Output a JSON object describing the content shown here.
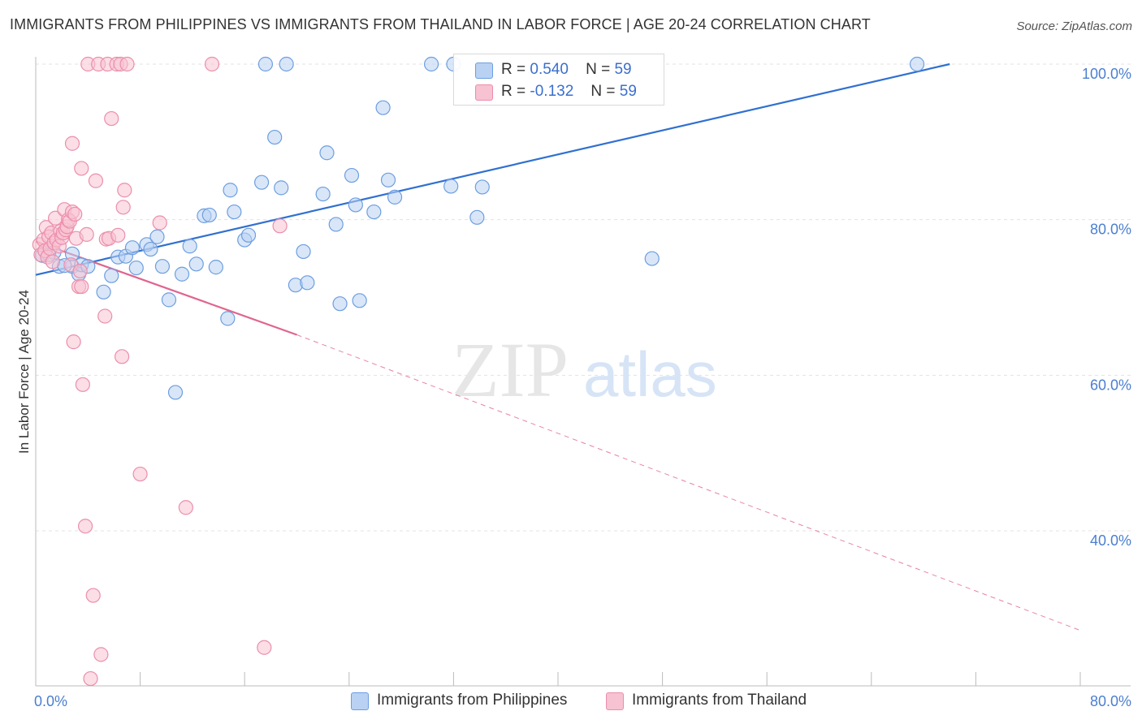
{
  "title": "IMMIGRANTS FROM PHILIPPINES VS IMMIGRANTS FROM THAILAND IN LABOR FORCE | AGE 20-24 CORRELATION CHART",
  "source": "Source: ZipAtlas.com",
  "watermark": {
    "zip": "ZIP",
    "atlas": "atlas"
  },
  "colors": {
    "blue_fill": "#b9d1f3",
    "blue_stroke": "#6c9ee0",
    "blue_line": "#3070d0",
    "pink_fill": "#f7c2d2",
    "pink_stroke": "#ec8eab",
    "pink_line": "#e0658e",
    "tick_label": "#4a7fd0",
    "grid": "#e3e3e3"
  },
  "legend": {
    "rows": [
      {
        "r_label": "R =",
        "r_value": "0.540",
        "n_label": "N =",
        "n_value": "59"
      },
      {
        "r_label": "R =",
        "r_value": "-0.132",
        "n_label": "N =",
        "n_value": "59"
      }
    ]
  },
  "chart_data": {
    "type": "scatter",
    "title": "IMMIGRANTS FROM PHILIPPINES VS IMMIGRANTS FROM THAILAND IN LABOR FORCE | AGE 20-24 CORRELATION CHART",
    "xlabel": "",
    "ylabel": "In Labor Force | Age 20-24",
    "xlim": [
      0,
      80
    ],
    "ylim": [
      20,
      102
    ],
    "x_tick_labels": [
      {
        "value": 0,
        "label": "0.0%"
      },
      {
        "value": 80,
        "label": "80.0%"
      }
    ],
    "y_tick_labels": [
      {
        "value": 100,
        "label": "100.0%"
      },
      {
        "value": 80,
        "label": "80.0%"
      },
      {
        "value": 60,
        "label": "60.0%"
      },
      {
        "value": 40,
        "label": "40.0%"
      }
    ],
    "grid": true,
    "legend_position": "top-center",
    "series": [
      {
        "name": "Immigrants from Philippines",
        "color": "blue",
        "points": [
          [
            0.5,
            75.4
          ],
          [
            1.0,
            75.5
          ],
          [
            1.4,
            75.8
          ],
          [
            1.8,
            74.0
          ],
          [
            2.8,
            74.0
          ],
          [
            2.8,
            75.6
          ],
          [
            3.3,
            73.0
          ],
          [
            3.5,
            74.2
          ],
          [
            4.0,
            74.0
          ],
          [
            5.2,
            70.7
          ],
          [
            5.8,
            72.8
          ],
          [
            6.3,
            75.2
          ],
          [
            6.9,
            75.3
          ],
          [
            7.7,
            73.8
          ],
          [
            7.4,
            76.4
          ],
          [
            8.5,
            76.8
          ],
          [
            8.8,
            76.2
          ],
          [
            9.3,
            77.8
          ],
          [
            9.7,
            74.0
          ],
          [
            10.2,
            69.7
          ],
          [
            10.7,
            57.8
          ],
          [
            11.2,
            73.0
          ],
          [
            11.8,
            76.6
          ],
          [
            12.3,
            74.3
          ],
          [
            12.9,
            80.5
          ],
          [
            13.3,
            80.6
          ],
          [
            13.8,
            73.9
          ],
          [
            14.7,
            67.3
          ],
          [
            14.9,
            83.8
          ],
          [
            15.2,
            81.0
          ],
          [
            16.0,
            77.4
          ],
          [
            16.3,
            78.0
          ],
          [
            17.3,
            84.8
          ],
          [
            17.6,
            100.0
          ],
          [
            18.3,
            90.6
          ],
          [
            18.8,
            84.1
          ],
          [
            19.2,
            100.0
          ],
          [
            19.9,
            71.6
          ],
          [
            20.5,
            75.9
          ],
          [
            20.8,
            71.9
          ],
          [
            22.0,
            83.3
          ],
          [
            22.3,
            88.6
          ],
          [
            23.0,
            79.4
          ],
          [
            23.3,
            69.2
          ],
          [
            24.2,
            85.7
          ],
          [
            24.5,
            81.9
          ],
          [
            24.8,
            69.6
          ],
          [
            25.9,
            81.0
          ],
          [
            26.6,
            94.4
          ],
          [
            27.0,
            85.1
          ],
          [
            27.5,
            82.9
          ],
          [
            30.3,
            100.0
          ],
          [
            31.8,
            84.3
          ],
          [
            32.0,
            100.0
          ],
          [
            33.8,
            80.3
          ],
          [
            34.2,
            84.2
          ],
          [
            47.2,
            75.0
          ],
          [
            67.5,
            100.0
          ],
          [
            2.2,
            74.1
          ]
        ],
        "trend": {
          "x0": 0,
          "y0": 72.9,
          "x1": 70.0,
          "y1": 100.0
        }
      },
      {
        "name": "Immigrants from Thailand",
        "color": "pink",
        "points": [
          [
            0.3,
            76.8
          ],
          [
            0.4,
            75.5
          ],
          [
            0.6,
            77.4
          ],
          [
            0.7,
            76.0
          ],
          [
            0.8,
            79.0
          ],
          [
            0.9,
            75.2
          ],
          [
            1.0,
            77.8
          ],
          [
            1.1,
            76.3
          ],
          [
            1.2,
            78.3
          ],
          [
            1.3,
            74.6
          ],
          [
            1.4,
            77.0
          ],
          [
            1.5,
            80.2
          ],
          [
            1.6,
            77.4
          ],
          [
            1.8,
            76.6
          ],
          [
            1.9,
            78.5
          ],
          [
            2.0,
            77.7
          ],
          [
            2.1,
            78.3
          ],
          [
            2.2,
            81.3
          ],
          [
            2.3,
            78.7
          ],
          [
            2.4,
            79.1
          ],
          [
            2.5,
            80.0
          ],
          [
            2.6,
            79.8
          ],
          [
            2.7,
            74.2
          ],
          [
            2.8,
            81.0
          ],
          [
            2.8,
            89.8
          ],
          [
            2.9,
            64.3
          ],
          [
            3.0,
            80.7
          ],
          [
            3.1,
            77.6
          ],
          [
            3.3,
            71.4
          ],
          [
            3.4,
            73.4
          ],
          [
            3.5,
            71.4
          ],
          [
            3.5,
            86.6
          ],
          [
            3.6,
            58.8
          ],
          [
            3.8,
            40.6
          ],
          [
            3.9,
            78.1
          ],
          [
            4.0,
            100.0
          ],
          [
            4.2,
            21.0
          ],
          [
            4.4,
            31.7
          ],
          [
            4.6,
            85.0
          ],
          [
            4.8,
            100.0
          ],
          [
            5.0,
            24.1
          ],
          [
            5.3,
            67.6
          ],
          [
            5.4,
            77.5
          ],
          [
            5.5,
            100.0
          ],
          [
            5.6,
            77.6
          ],
          [
            5.8,
            93.0
          ],
          [
            6.2,
            100.0
          ],
          [
            6.3,
            78.0
          ],
          [
            6.5,
            100.0
          ],
          [
            6.6,
            62.4
          ],
          [
            6.7,
            81.6
          ],
          [
            6.8,
            83.8
          ],
          [
            7.0,
            100.0
          ],
          [
            8.0,
            47.3
          ],
          [
            9.5,
            79.6
          ],
          [
            11.5,
            43.0
          ],
          [
            13.5,
            100.0
          ],
          [
            17.5,
            25.0
          ],
          [
            18.7,
            79.2
          ]
        ],
        "trend": {
          "x0": 0,
          "y0": 77.2,
          "x1": 20.0,
          "y1": 65.2
        },
        "trend_extension": {
          "x0": 20.0,
          "y0": 65.2,
          "x1": 80.0,
          "y1": 27.2
        }
      }
    ]
  }
}
